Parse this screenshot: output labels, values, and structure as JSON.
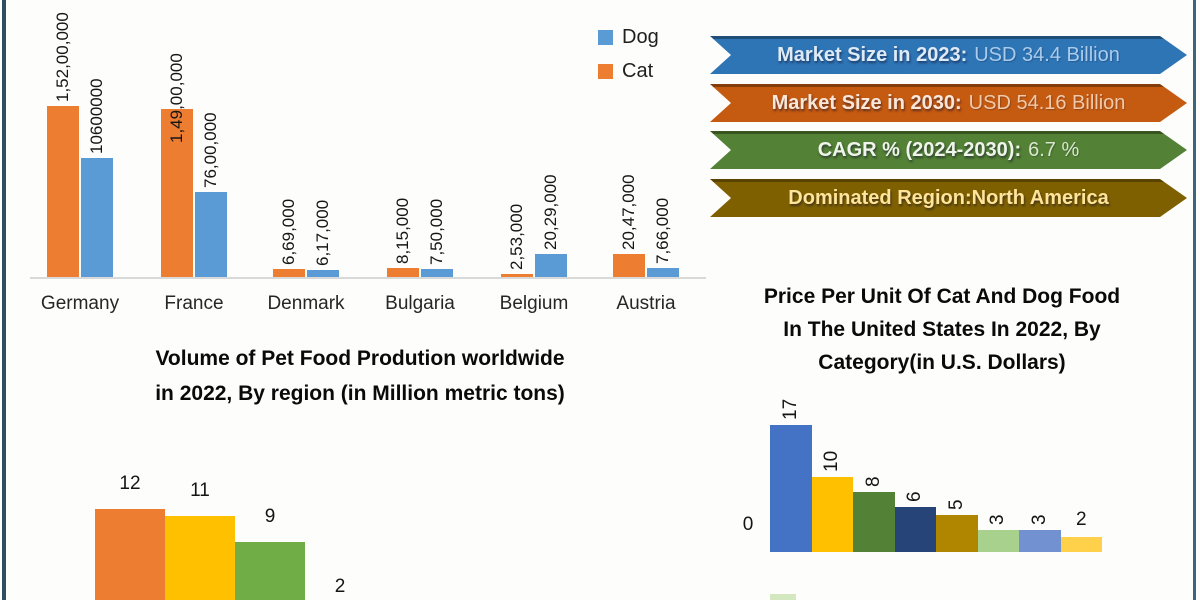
{
  "frame": {
    "left_border_color": "#2E4D5E",
    "right_border_color": "#3E6679"
  },
  "banners": [
    {
      "label": "Market Size in 2023:",
      "value": "USD 34.4 Billion",
      "bg": "#2E75B6",
      "border": "#1F4E79",
      "label_color": "#DEEBF7",
      "value_color": "#A9CCEC"
    },
    {
      "label": "Market Size in 2030:",
      "value": "USD 54.16 Billion",
      "bg": "#C55A11",
      "border": "#843C0C",
      "label_color": "#FAE7D9",
      "value_color": "#F2C9A8"
    },
    {
      "label": "CAGR % (2024-2030):",
      "value": "6.7 %",
      "bg": "#538135",
      "border": "#38551F",
      "label_color": "#EFF5EA",
      "value_color": "#D9E8CC"
    },
    {
      "label": "Dominated Region:North America",
      "value": "",
      "bg": "#7F6000",
      "border": "#594300",
      "label_color": "#FFE599",
      "value_color": "#FFE599"
    }
  ],
  "chart_data": [
    {
      "id": "production",
      "type": "bar",
      "categories": [
        "Germany",
        "France",
        "Denmark",
        "Bulgaria",
        "Belgium",
        "Austria"
      ],
      "series": [
        {
          "name": "Cat",
          "color": "#ED7D31",
          "values": [
            15200000,
            14900000,
            669000,
            815000,
            253000,
            2047000
          ],
          "labels": [
            "1,52,00,000",
            "1,49,00,000",
            "6,69,000",
            "8,15,000",
            "2,53,000",
            "20,47,000"
          ]
        },
        {
          "name": "Dog",
          "color": "#5B9BD5",
          "values": [
            10600000,
            7600000,
            617000,
            750000,
            2029000,
            766000
          ],
          "labels": [
            "10600000",
            "76,00,000",
            "6,17,000",
            "7,50,000",
            "20,29,000",
            "7,66,000"
          ]
        }
      ],
      "legend": [
        {
          "label": "Dog",
          "color": "#5B9BD5"
        },
        {
          "label": "Cat",
          "color": "#ED7D31"
        }
      ],
      "legend_position": "top-right",
      "grid": false,
      "ylim": [
        0,
        15200000
      ]
    },
    {
      "id": "volume",
      "type": "bar",
      "title_lines": [
        "Volume of Pet Food Prodution worldwide",
        "in 2022, By region (in Million metric tons)"
      ],
      "values": [
        12,
        11,
        9,
        2
      ],
      "labels": [
        "12",
        "11",
        "9",
        "2"
      ],
      "colors": [
        "#ED7D31",
        "#FFC000",
        "#70AD47",
        "#FFC000"
      ],
      "grid": false
    },
    {
      "id": "price",
      "type": "bar",
      "title_lines": [
        "Price Per Unit Of Cat And Dog Food",
        "In The United States In 2022, By",
        "Category(in U.S. Dollars)"
      ],
      "values": [
        17,
        10,
        8,
        6,
        5,
        3,
        3,
        2
      ],
      "labels": [
        "17",
        "10",
        "8",
        "6",
        "5",
        "3",
        "3",
        "2"
      ],
      "colors": [
        "#4472C4",
        "#FFC000",
        "#538135",
        "#264478",
        "#B08600",
        "#A9D18E",
        "#7191D1",
        "#FFD04A"
      ],
      "zero_label": "0",
      "grid": false,
      "ylim": [
        0,
        17
      ]
    }
  ]
}
